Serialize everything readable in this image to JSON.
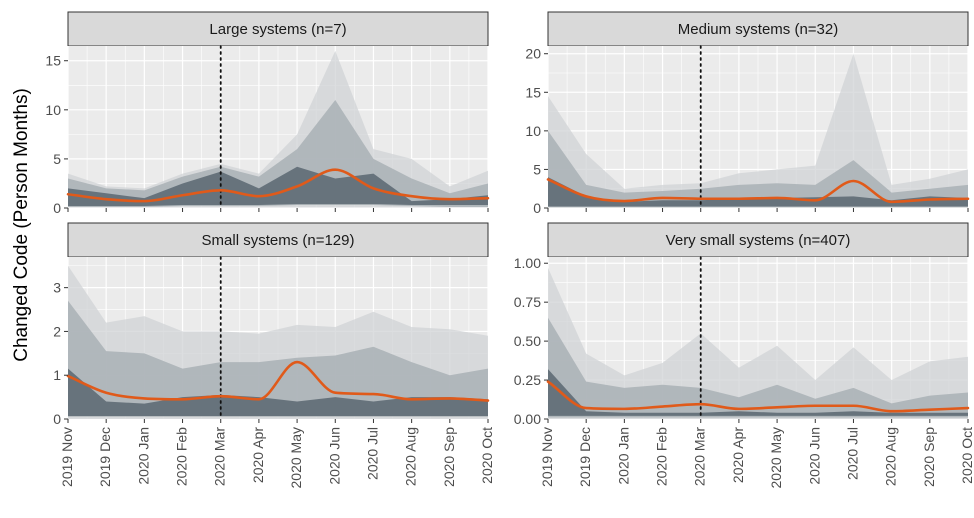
{
  "ylabel": "Changed Code (Person Months)",
  "colors": {
    "panel_bg": "#ebebeb",
    "grid": "#ffffff",
    "strip_bg": "#d9d9d9",
    "band_outer": "#d0d3d5",
    "band_mid": "#a9b0b5",
    "band_inner": "#5f6c75",
    "median_line": "#e05a1a"
  },
  "x_ticks": [
    "2019 Nov",
    "2019 Dec",
    "2020 Jan",
    "2020 Feb",
    "2020 Mar",
    "2020 Apr",
    "2020 May",
    "2020 Jun",
    "2020 Jul",
    "2020 Aug",
    "2020 Sep",
    "2020 Oct"
  ],
  "chart_data": [
    {
      "type": "area",
      "title": "Large systems (n=7)",
      "ylim": [
        0,
        16.5
      ],
      "y_ticks": [
        0,
        5,
        10,
        15
      ],
      "y_tick_labels": [
        "0",
        "5",
        "10",
        "15"
      ],
      "vline_x": "2020 Mar",
      "band_outer_low": [
        0.05,
        0.05,
        0.05,
        0.05,
        0.05,
        0.05,
        0.05,
        0.05,
        0.05,
        0.05,
        0.05,
        0.05
      ],
      "band_outer_high": [
        3.5,
        2.2,
        2.0,
        3.5,
        4.5,
        3.5,
        7.5,
        16.0,
        6.0,
        5.0,
        2.2,
        3.8
      ],
      "band_mid_low": [
        0.1,
        0.1,
        0.1,
        0.2,
        0.2,
        0.2,
        0.3,
        0.3,
        0.3,
        0.2,
        0.1,
        0.1
      ],
      "band_mid_high": [
        3.0,
        2.0,
        1.8,
        3.2,
        4.2,
        3.2,
        6.0,
        11.0,
        5.0,
        3.0,
        1.5,
        2.5
      ],
      "band_inner_low": [
        0.2,
        0.2,
        0.2,
        0.3,
        0.3,
        0.3,
        0.4,
        0.4,
        0.4,
        0.3,
        0.3,
        0.3
      ],
      "band_inner_high": [
        2.0,
        1.5,
        1.0,
        2.5,
        3.7,
        2.0,
        4.2,
        3.0,
        3.5,
        0.7,
        0.9,
        1.3
      ],
      "median": [
        1.4,
        0.9,
        0.7,
        1.3,
        1.8,
        1.2,
        2.2,
        3.9,
        2.0,
        1.2,
        0.9,
        1.0
      ]
    },
    {
      "type": "area",
      "title": "Medium systems (n=32)",
      "ylim": [
        0,
        21
      ],
      "y_ticks": [
        0,
        5,
        10,
        15,
        20
      ],
      "y_tick_labels": [
        "0",
        "5",
        "10",
        "15",
        "20"
      ],
      "vline_x": "2020 Mar",
      "band_outer_low": [
        0.05,
        0.05,
        0.05,
        0.05,
        0.05,
        0.05,
        0.05,
        0.05,
        0.05,
        0.05,
        0.05,
        0.05
      ],
      "band_outer_high": [
        14.5,
        7.0,
        2.5,
        3.0,
        3.2,
        4.5,
        5.0,
        5.5,
        20.0,
        3.0,
        3.8,
        5.0
      ],
      "band_mid_low": [
        0.1,
        0.1,
        0.1,
        0.1,
        0.1,
        0.1,
        0.1,
        0.1,
        0.1,
        0.1,
        0.1,
        0.1
      ],
      "band_mid_high": [
        10.0,
        3.0,
        2.0,
        2.2,
        2.5,
        3.0,
        3.2,
        3.0,
        6.2,
        2.0,
        2.5,
        3.0
      ],
      "band_inner_low": [
        0.2,
        0.2,
        0.2,
        0.2,
        0.2,
        0.2,
        0.2,
        0.2,
        0.2,
        0.2,
        0.2,
        0.2
      ],
      "band_inner_high": [
        4.0,
        1.5,
        0.8,
        1.0,
        1.0,
        1.2,
        1.3,
        1.4,
        1.5,
        1.0,
        1.5,
        1.3
      ],
      "median": [
        3.7,
        1.5,
        0.9,
        1.3,
        1.2,
        1.2,
        1.3,
        1.0,
        3.5,
        0.8,
        1.1,
        1.2
      ]
    },
    {
      "type": "area",
      "title": "Small systems (n=129)",
      "ylim": [
        0,
        3.7
      ],
      "y_ticks": [
        0,
        1,
        2,
        3
      ],
      "y_tick_labels": [
        "0",
        "1",
        "2",
        "3"
      ],
      "vline_x": "2020 Mar",
      "band_outer_low": [
        0.0,
        0.0,
        0.0,
        0.0,
        0.0,
        0.0,
        0.0,
        0.0,
        0.0,
        0.0,
        0.0,
        0.0
      ],
      "band_outer_high": [
        3.5,
        2.2,
        2.35,
        2.0,
        2.0,
        1.95,
        2.15,
        2.1,
        2.45,
        2.1,
        2.05,
        1.9
      ],
      "band_mid_low": [
        0.05,
        0.05,
        0.05,
        0.05,
        0.05,
        0.05,
        0.05,
        0.05,
        0.05,
        0.05,
        0.05,
        0.05
      ],
      "band_mid_high": [
        2.7,
        1.55,
        1.5,
        1.15,
        1.3,
        1.3,
        1.4,
        1.45,
        1.65,
        1.3,
        1.0,
        1.15
      ],
      "band_inner_low": [
        0.07,
        0.07,
        0.07,
        0.07,
        0.07,
        0.07,
        0.07,
        0.07,
        0.07,
        0.07,
        0.07,
        0.07
      ],
      "band_inner_high": [
        1.15,
        0.4,
        0.35,
        0.5,
        0.55,
        0.5,
        0.4,
        0.5,
        0.4,
        0.5,
        0.5,
        0.45
      ],
      "median": [
        0.98,
        0.6,
        0.47,
        0.45,
        0.52,
        0.45,
        1.3,
        0.6,
        0.57,
        0.45,
        0.47,
        0.42
      ]
    },
    {
      "type": "area",
      "title": "Very small systems (n=407)",
      "ylim": [
        0,
        1.04
      ],
      "y_ticks": [
        0,
        0.25,
        0.5,
        0.75,
        1.0
      ],
      "y_tick_labels": [
        "0.00",
        "0.25",
        "0.50",
        "0.75",
        "1.00"
      ],
      "vline_x": "2020 Mar",
      "band_outer_low": [
        0.0,
        0.0,
        0.0,
        0.0,
        0.0,
        0.0,
        0.0,
        0.0,
        0.0,
        0.0,
        0.0,
        0.0
      ],
      "band_outer_high": [
        0.97,
        0.42,
        0.28,
        0.36,
        0.55,
        0.33,
        0.47,
        0.25,
        0.46,
        0.25,
        0.37,
        0.4
      ],
      "band_mid_low": [
        0.01,
        0.01,
        0.01,
        0.01,
        0.01,
        0.01,
        0.01,
        0.01,
        0.01,
        0.01,
        0.01,
        0.01
      ],
      "band_mid_high": [
        0.65,
        0.24,
        0.2,
        0.22,
        0.2,
        0.14,
        0.22,
        0.13,
        0.2,
        0.1,
        0.15,
        0.17
      ],
      "band_inner_low": [
        0.02,
        0.02,
        0.02,
        0.02,
        0.02,
        0.02,
        0.02,
        0.02,
        0.02,
        0.02,
        0.02,
        0.02
      ],
      "band_inner_high": [
        0.32,
        0.05,
        0.04,
        0.04,
        0.04,
        0.05,
        0.04,
        0.04,
        0.05,
        0.04,
        0.04,
        0.04
      ],
      "median": [
        0.24,
        0.07,
        0.065,
        0.08,
        0.095,
        0.065,
        0.075,
        0.085,
        0.085,
        0.05,
        0.06,
        0.07
      ]
    }
  ]
}
